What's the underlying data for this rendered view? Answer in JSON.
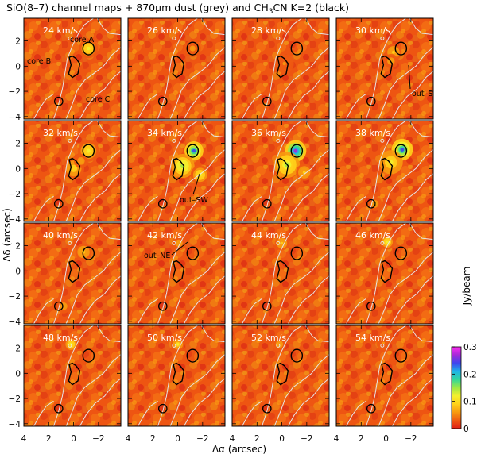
{
  "figure": {
    "title_prefix": "SiO(8–7) channel maps  +  870",
    "title_mu": "μ",
    "title_mid": "m dust (grey) and CH",
    "title_sub": "3",
    "title_suffix": "CN K=2 (black)"
  },
  "colorbar": {
    "label": "Jy/beam",
    "ticks": [
      "0.3",
      "0.2",
      "0.1",
      "0"
    ],
    "colors": [
      "#e01f16",
      "#ee5a12",
      "#f79a10",
      "#ffd21a",
      "#f4f02e",
      "#9ee845",
      "#33d79a",
      "#1eb4e8",
      "#3d46ee",
      "#a42ad8",
      "#ff2cf0"
    ]
  },
  "chart_data": {
    "type": "heatmap",
    "title": "SiO(8–7) channel maps + 870μm dust (grey) and CH3CN K=2 (black)",
    "xlabel": "Δα (arcsec)",
    "ylabel": "Δδ (arcsec)",
    "xlim": [
      4,
      -3.8
    ],
    "ylim": [
      -4.2,
      3.8
    ],
    "x_ticks": [
      "4",
      "2",
      "0",
      "−2"
    ],
    "y_ticks": [
      "2",
      "0",
      "−2",
      "−4"
    ],
    "x_tick_values": [
      4,
      2,
      0,
      -2
    ],
    "y_tick_values": [
      2,
      0,
      -2,
      -4
    ],
    "colorbar_range": [
      0,
      0.3
    ],
    "colorbar_unit": "Jy/beam",
    "channels": [
      {
        "velocity": 24,
        "label": "24 km/s",
        "peaks": [
          {
            "x": -1.2,
            "y": 1.4,
            "v": 0.12,
            "s": 0.4
          }
        ]
      },
      {
        "velocity": 26,
        "label": "26 km/s",
        "peaks": [
          {
            "x": -1.2,
            "y": 1.4,
            "v": 0.06,
            "s": 0.35
          }
        ]
      },
      {
        "velocity": 28,
        "label": "28 km/s",
        "peaks": [
          {
            "x": -0.2,
            "y": 0.2,
            "v": 0.05,
            "s": 0.4
          }
        ]
      },
      {
        "velocity": 30,
        "label": "30 km/s",
        "peaks": [
          {
            "x": -0.6,
            "y": 1.1,
            "v": 0.09,
            "s": 0.35
          },
          {
            "x": -0.4,
            "y": 0.4,
            "v": 0.07,
            "s": 0.3
          }
        ]
      },
      {
        "velocity": 32,
        "label": "32 km/s",
        "peaks": [
          {
            "x": -1.2,
            "y": 1.4,
            "v": 0.12,
            "s": 0.45
          },
          {
            "x": 0,
            "y": 0,
            "v": 0.1,
            "s": 0.45
          },
          {
            "x": -0.6,
            "y": 0.6,
            "v": 0.07,
            "s": 0.3
          }
        ]
      },
      {
        "velocity": 34,
        "label": "34 km/s",
        "peaks": [
          {
            "x": -1.3,
            "y": 1.4,
            "v": 0.25,
            "s": 0.4
          },
          {
            "x": -0.4,
            "y": 0.2,
            "v": 0.16,
            "s": 0.5
          },
          {
            "x": -1.8,
            "y": -0.5,
            "v": 0.12,
            "s": 0.4
          }
        ]
      },
      {
        "velocity": 36,
        "label": "36 km/s",
        "peaks": [
          {
            "x": -1.1,
            "y": 1.4,
            "v": 0.27,
            "s": 0.45
          },
          {
            "x": -0.4,
            "y": 0.3,
            "v": 0.15,
            "s": 0.55
          },
          {
            "x": -1.8,
            "y": -0.3,
            "v": 0.09,
            "s": 0.35
          }
        ]
      },
      {
        "velocity": 38,
        "label": "38 km/s",
        "peaks": [
          {
            "x": -1.3,
            "y": 1.5,
            "v": 0.25,
            "s": 0.45
          },
          {
            "x": -0.4,
            "y": 0.5,
            "v": 0.13,
            "s": 0.5
          },
          {
            "x": 0.9,
            "y": -2.8,
            "v": 0.08,
            "s": 0.3
          }
        ]
      },
      {
        "velocity": 40,
        "label": "40 km/s",
        "peaks": [
          {
            "x": -0.8,
            "y": 1.5,
            "v": 0.09,
            "s": 0.35
          },
          {
            "x": 0.8,
            "y": -2.8,
            "v": 0.07,
            "s": 0.3
          }
        ]
      },
      {
        "velocity": 42,
        "label": "42 km/s",
        "peaks": [
          {
            "x": -0.1,
            "y": 2.2,
            "v": 0.07,
            "s": 0.3
          }
        ]
      },
      {
        "velocity": 44,
        "label": "44 km/s",
        "peaks": [
          {
            "x": 0,
            "y": 2.2,
            "v": 0.09,
            "s": 0.3
          }
        ]
      },
      {
        "velocity": 46,
        "label": "46 km/s",
        "peaks": [
          {
            "x": -0.1,
            "y": 2.3,
            "v": 0.12,
            "s": 0.32
          }
        ]
      },
      {
        "velocity": 48,
        "label": "48 km/s",
        "peaks": [
          {
            "x": 0.2,
            "y": 2.3,
            "v": 0.12,
            "s": 0.32
          }
        ]
      },
      {
        "velocity": 50,
        "label": "50 km/s",
        "peaks": [
          {
            "x": 0,
            "y": 2.3,
            "v": 0.11,
            "s": 0.3
          }
        ]
      },
      {
        "velocity": 52,
        "label": "52 km/s",
        "peaks": [
          {
            "x": 0.2,
            "y": 2.3,
            "v": 0.07,
            "s": 0.3
          }
        ]
      },
      {
        "velocity": 54,
        "label": "54 km/s",
        "peaks": [
          {
            "x": 0.2,
            "y": 2.4,
            "v": 0.05,
            "s": 0.3
          }
        ]
      }
    ],
    "annotations": [
      {
        "panel": 0,
        "text": "core A"
      },
      {
        "panel": 0,
        "text": "core B"
      },
      {
        "panel": 0,
        "text": "core C"
      },
      {
        "panel": 3,
        "text": "out–S"
      },
      {
        "panel": 5,
        "text": "out–SW"
      },
      {
        "panel": 9,
        "text": "out–NE"
      }
    ]
  }
}
